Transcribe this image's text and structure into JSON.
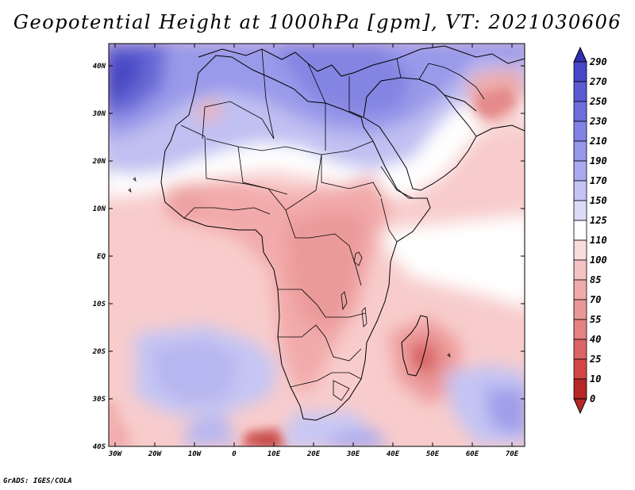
{
  "title": "Geopotential Height at 1000hPa [gpm], VT: 2021030606",
  "credit": "GrADS: IGES/COLA",
  "map": {
    "lon_ticks": [
      "30W",
      "20W",
      "10W",
      "0",
      "10E",
      "20E",
      "30E",
      "40E",
      "50E",
      "60E",
      "70E"
    ],
    "lat_ticks": [
      "40N",
      "30N",
      "20N",
      "10N",
      "EQ",
      "10S",
      "20S",
      "30S",
      "40S"
    ]
  },
  "colorbar": {
    "labels": [
      "290",
      "270",
      "250",
      "230",
      "210",
      "190",
      "170",
      "150",
      "125",
      "110",
      "100",
      "85",
      "70",
      "55",
      "40",
      "25",
      "10",
      "0"
    ],
    "colors": [
      "#2f2fb4",
      "#4646c8",
      "#5a5ad2",
      "#6e6edc",
      "#8282e6",
      "#9696eb",
      "#aaaaf0",
      "#c3c3f5",
      "#dcdcfa",
      "#ffffff",
      "#fadcdc",
      "#f5c3c3",
      "#f0aaaa",
      "#eb9696",
      "#e68282",
      "#dc6464",
      "#d24646",
      "#b42828"
    ]
  }
}
